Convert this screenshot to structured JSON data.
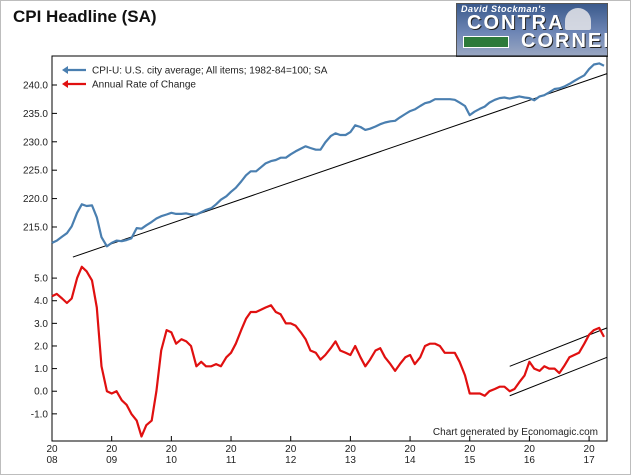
{
  "chart_data": {
    "type": "line",
    "title": "CPI Headline (SA)",
    "credit": "Chart generated by Economagic.com",
    "legend": [
      {
        "name": "CPI-U: U.S. city average; All items; 1982-84=100; SA",
        "color": "#4a7fb0"
      },
      {
        "name": "Annual Rate of Change",
        "color": "#e01010"
      }
    ],
    "x_ticks": [
      {
        "year": 2008,
        "top": "20",
        "bottom": "08"
      },
      {
        "year": 2009,
        "top": "20",
        "bottom": "09"
      },
      {
        "year": 2010,
        "top": "20",
        "bottom": "10"
      },
      {
        "year": 2011,
        "top": "20",
        "bottom": "11"
      },
      {
        "year": 2012,
        "top": "20",
        "bottom": "12"
      },
      {
        "year": 2013,
        "top": "20",
        "bottom": "13"
      },
      {
        "year": 2014,
        "top": "20",
        "bottom": "14"
      },
      {
        "year": 2015,
        "top": "20",
        "bottom": "15"
      },
      {
        "year": 2016,
        "top": "20",
        "bottom": "16"
      },
      {
        "year": 2017,
        "top": "20",
        "bottom": "17"
      }
    ],
    "xlim": [
      2008.0,
      2017.3
    ],
    "panels": [
      {
        "name": "CPI-U: U.S. city average; All items; 1982-84=100; SA",
        "color": "#4a7fb0",
        "ylim": [
          211.3,
          244.4
        ],
        "yticks": [
          "215.0",
          "220.0",
          "225.0",
          "230.0",
          "235.0",
          "240.0"
        ],
        "points": [
          [
            2008.0,
            212.2
          ],
          [
            2008.08,
            212.6
          ],
          [
            2008.17,
            213.3
          ],
          [
            2008.25,
            213.9
          ],
          [
            2008.33,
            215.1
          ],
          [
            2008.42,
            217.5
          ],
          [
            2008.5,
            219.0
          ],
          [
            2008.58,
            218.7
          ],
          [
            2008.67,
            218.8
          ],
          [
            2008.75,
            216.7
          ],
          [
            2008.83,
            213.2
          ],
          [
            2008.92,
            211.6
          ],
          [
            2009.0,
            212.2
          ],
          [
            2009.08,
            212.6
          ],
          [
            2009.17,
            212.5
          ],
          [
            2009.25,
            212.7
          ],
          [
            2009.33,
            213.0
          ],
          [
            2009.42,
            214.8
          ],
          [
            2009.5,
            214.7
          ],
          [
            2009.58,
            215.3
          ],
          [
            2009.67,
            215.9
          ],
          [
            2009.75,
            216.5
          ],
          [
            2009.83,
            216.9
          ],
          [
            2009.92,
            217.2
          ],
          [
            2010.0,
            217.5
          ],
          [
            2010.08,
            217.3
          ],
          [
            2010.17,
            217.3
          ],
          [
            2010.25,
            217.4
          ],
          [
            2010.33,
            217.2
          ],
          [
            2010.42,
            217.2
          ],
          [
            2010.5,
            217.6
          ],
          [
            2010.58,
            218.0
          ],
          [
            2010.67,
            218.3
          ],
          [
            2010.75,
            219.0
          ],
          [
            2010.83,
            219.8
          ],
          [
            2010.92,
            220.4
          ],
          [
            2011.0,
            221.2
          ],
          [
            2011.08,
            221.9
          ],
          [
            2011.17,
            223.0
          ],
          [
            2011.25,
            224.1
          ],
          [
            2011.33,
            224.8
          ],
          [
            2011.42,
            224.8
          ],
          [
            2011.5,
            225.5
          ],
          [
            2011.58,
            226.2
          ],
          [
            2011.67,
            226.6
          ],
          [
            2011.75,
            226.8
          ],
          [
            2011.83,
            227.2
          ],
          [
            2011.92,
            227.2
          ],
          [
            2012.0,
            227.8
          ],
          [
            2012.08,
            228.3
          ],
          [
            2012.17,
            228.8
          ],
          [
            2012.25,
            229.2
          ],
          [
            2012.33,
            228.9
          ],
          [
            2012.42,
            228.6
          ],
          [
            2012.5,
            228.6
          ],
          [
            2012.58,
            229.9
          ],
          [
            2012.67,
            231.0
          ],
          [
            2012.75,
            231.5
          ],
          [
            2012.83,
            231.2
          ],
          [
            2012.92,
            231.2
          ],
          [
            2013.0,
            231.7
          ],
          [
            2013.08,
            232.9
          ],
          [
            2013.17,
            232.6
          ],
          [
            2013.25,
            232.1
          ],
          [
            2013.33,
            232.3
          ],
          [
            2013.42,
            232.7
          ],
          [
            2013.5,
            233.1
          ],
          [
            2013.58,
            233.4
          ],
          [
            2013.67,
            233.6
          ],
          [
            2013.75,
            233.7
          ],
          [
            2013.83,
            234.3
          ],
          [
            2013.92,
            234.9
          ],
          [
            2014.0,
            235.4
          ],
          [
            2014.08,
            235.7
          ],
          [
            2014.17,
            236.3
          ],
          [
            2014.25,
            236.8
          ],
          [
            2014.33,
            237.0
          ],
          [
            2014.42,
            237.5
          ],
          [
            2014.5,
            237.5
          ],
          [
            2014.58,
            237.5
          ],
          [
            2014.67,
            237.5
          ],
          [
            2014.75,
            237.4
          ],
          [
            2014.83,
            236.9
          ],
          [
            2014.92,
            236.3
          ],
          [
            2015.0,
            234.7
          ],
          [
            2015.08,
            235.3
          ],
          [
            2015.17,
            235.8
          ],
          [
            2015.25,
            236.2
          ],
          [
            2015.33,
            236.9
          ],
          [
            2015.42,
            237.4
          ],
          [
            2015.5,
            237.7
          ],
          [
            2015.58,
            237.8
          ],
          [
            2015.67,
            237.6
          ],
          [
            2015.75,
            237.8
          ],
          [
            2015.83,
            238.0
          ],
          [
            2015.92,
            237.8
          ],
          [
            2016.0,
            237.7
          ],
          [
            2016.08,
            237.3
          ],
          [
            2016.17,
            238.0
          ],
          [
            2016.25,
            238.2
          ],
          [
            2016.33,
            238.7
          ],
          [
            2016.42,
            239.3
          ],
          [
            2016.5,
            239.4
          ],
          [
            2016.58,
            239.7
          ],
          [
            2016.67,
            240.2
          ],
          [
            2016.75,
            240.7
          ],
          [
            2016.83,
            241.2
          ],
          [
            2016.92,
            241.7
          ],
          [
            2017.0,
            242.8
          ],
          [
            2017.08,
            243.6
          ],
          [
            2017.17,
            243.8
          ],
          [
            2017.25,
            243.4
          ]
        ],
        "trend_lines": [
          [
            [
              2008.35,
              209.7
            ],
            [
              2017.3,
              242.0
            ]
          ]
        ]
      },
      {
        "name": "Annual Rate of Change",
        "color": "#e01010",
        "ylim": [
          -2.2,
          5.8
        ],
        "yticks": [
          "-1.0",
          "0.0",
          "1.0",
          "2.0",
          "3.0",
          "4.0",
          "5.0"
        ],
        "points": [
          [
            2008.0,
            4.2
          ],
          [
            2008.08,
            4.3
          ],
          [
            2008.17,
            4.1
          ],
          [
            2008.25,
            3.9
          ],
          [
            2008.33,
            4.1
          ],
          [
            2008.42,
            5.0
          ],
          [
            2008.5,
            5.5
          ],
          [
            2008.58,
            5.3
          ],
          [
            2008.67,
            4.9
          ],
          [
            2008.75,
            3.7
          ],
          [
            2008.83,
            1.1
          ],
          [
            2008.92,
            0.0
          ],
          [
            2009.0,
            -0.1
          ],
          [
            2009.08,
            0.0
          ],
          [
            2009.17,
            -0.4
          ],
          [
            2009.25,
            -0.6
          ],
          [
            2009.33,
            -1.0
          ],
          [
            2009.42,
            -1.3
          ],
          [
            2009.5,
            -2.0
          ],
          [
            2009.58,
            -1.5
          ],
          [
            2009.67,
            -1.3
          ],
          [
            2009.75,
            0.0
          ],
          [
            2009.83,
            1.8
          ],
          [
            2009.92,
            2.7
          ],
          [
            2010.0,
            2.6
          ],
          [
            2010.08,
            2.1
          ],
          [
            2010.17,
            2.3
          ],
          [
            2010.25,
            2.2
          ],
          [
            2010.33,
            2.0
          ],
          [
            2010.42,
            1.1
          ],
          [
            2010.5,
            1.3
          ],
          [
            2010.58,
            1.1
          ],
          [
            2010.67,
            1.1
          ],
          [
            2010.75,
            1.2
          ],
          [
            2010.83,
            1.1
          ],
          [
            2010.92,
            1.5
          ],
          [
            2011.0,
            1.7
          ],
          [
            2011.08,
            2.1
          ],
          [
            2011.17,
            2.7
          ],
          [
            2011.25,
            3.2
          ],
          [
            2011.33,
            3.5
          ],
          [
            2011.42,
            3.5
          ],
          [
            2011.5,
            3.6
          ],
          [
            2011.58,
            3.7
          ],
          [
            2011.67,
            3.8
          ],
          [
            2011.75,
            3.5
          ],
          [
            2011.83,
            3.4
          ],
          [
            2011.92,
            3.0
          ],
          [
            2012.0,
            3.0
          ],
          [
            2012.08,
            2.9
          ],
          [
            2012.17,
            2.6
          ],
          [
            2012.25,
            2.3
          ],
          [
            2012.33,
            1.8
          ],
          [
            2012.42,
            1.7
          ],
          [
            2012.5,
            1.4
          ],
          [
            2012.58,
            1.6
          ],
          [
            2012.67,
            1.9
          ],
          [
            2012.75,
            2.2
          ],
          [
            2012.83,
            1.8
          ],
          [
            2012.92,
            1.7
          ],
          [
            2013.0,
            1.6
          ],
          [
            2013.08,
            2.0
          ],
          [
            2013.17,
            1.5
          ],
          [
            2013.25,
            1.1
          ],
          [
            2013.33,
            1.4
          ],
          [
            2013.42,
            1.8
          ],
          [
            2013.5,
            1.9
          ],
          [
            2013.58,
            1.5
          ],
          [
            2013.67,
            1.2
          ],
          [
            2013.75,
            0.9
          ],
          [
            2013.83,
            1.2
          ],
          [
            2013.92,
            1.5
          ],
          [
            2014.0,
            1.6
          ],
          [
            2014.08,
            1.2
          ],
          [
            2014.17,
            1.5
          ],
          [
            2014.25,
            2.0
          ],
          [
            2014.33,
            2.1
          ],
          [
            2014.42,
            2.1
          ],
          [
            2014.5,
            2.0
          ],
          [
            2014.58,
            1.7
          ],
          [
            2014.67,
            1.7
          ],
          [
            2014.75,
            1.7
          ],
          [
            2014.83,
            1.3
          ],
          [
            2014.92,
            0.7
          ],
          [
            2015.0,
            -0.1
          ],
          [
            2015.08,
            -0.1
          ],
          [
            2015.17,
            -0.1
          ],
          [
            2015.25,
            -0.2
          ],
          [
            2015.33,
            0.0
          ],
          [
            2015.42,
            0.1
          ],
          [
            2015.5,
            0.2
          ],
          [
            2015.58,
            0.2
          ],
          [
            2015.67,
            0.0
          ],
          [
            2015.75,
            0.1
          ],
          [
            2015.83,
            0.4
          ],
          [
            2015.92,
            0.7
          ],
          [
            2016.0,
            1.3
          ],
          [
            2016.08,
            1.0
          ],
          [
            2016.17,
            0.9
          ],
          [
            2016.25,
            1.1
          ],
          [
            2016.33,
            1.0
          ],
          [
            2016.42,
            1.0
          ],
          [
            2016.5,
            0.8
          ],
          [
            2016.58,
            1.1
          ],
          [
            2016.67,
            1.5
          ],
          [
            2016.75,
            1.6
          ],
          [
            2016.83,
            1.7
          ],
          [
            2016.92,
            2.1
          ],
          [
            2017.0,
            2.5
          ],
          [
            2017.08,
            2.7
          ],
          [
            2017.17,
            2.8
          ],
          [
            2017.25,
            2.4
          ]
        ],
        "trend_lines": [
          [
            [
              2015.67,
              1.1
            ],
            [
              2017.3,
              2.8
            ]
          ],
          [
            [
              2015.67,
              -0.2
            ],
            [
              2017.3,
              1.5
            ]
          ]
        ]
      }
    ]
  }
}
